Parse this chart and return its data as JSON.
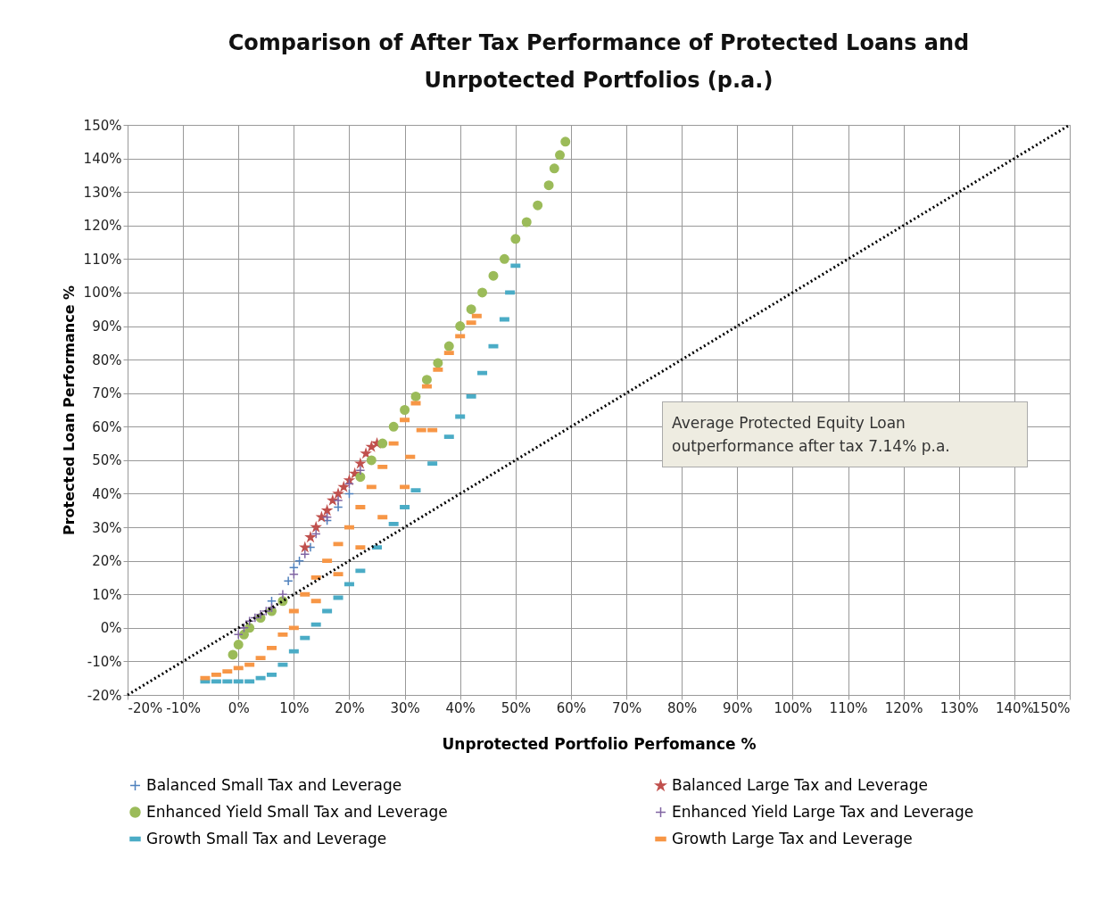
{
  "chart_data": {
    "type": "scatter",
    "title": "Comparison of After Tax  Performance of Protected Loans and\nUnrpotected Portfolios (p.a.)",
    "xlabel": "Unprotected Portfolio Perfomance %",
    "ylabel": "Protected Loan Performance %",
    "xlim": [
      -20,
      150
    ],
    "ylim": [
      -20,
      150
    ],
    "xticks": [
      {
        "value": -20,
        "label": "-20%"
      },
      {
        "value": -10,
        "label": "-10%"
      },
      {
        "value": 0,
        "label": "0%"
      },
      {
        "value": 10,
        "label": "10%"
      },
      {
        "value": 20,
        "label": "20%"
      },
      {
        "value": 30,
        "label": "30%"
      },
      {
        "value": 40,
        "label": "40%"
      },
      {
        "value": 50,
        "label": "50%"
      },
      {
        "value": 60,
        "label": "60%"
      },
      {
        "value": 70,
        "label": "70%"
      },
      {
        "value": 80,
        "label": "80%"
      },
      {
        "value": 90,
        "label": "90%"
      },
      {
        "value": 100,
        "label": "100%"
      },
      {
        "value": 110,
        "label": "110%"
      },
      {
        "value": 120,
        "label": "120%"
      },
      {
        "value": 130,
        "label": "130%"
      },
      {
        "value": 140,
        "label": "140%"
      },
      {
        "value": 150,
        "label": "150%"
      }
    ],
    "yticks": [
      {
        "value": -20,
        "label": "-20%"
      },
      {
        "value": -10,
        "label": "-10%"
      },
      {
        "value": 0,
        "label": "0%"
      },
      {
        "value": 10,
        "label": "10%"
      },
      {
        "value": 20,
        "label": "20%"
      },
      {
        "value": 30,
        "label": "30%"
      },
      {
        "value": 40,
        "label": "40%"
      },
      {
        "value": 50,
        "label": "50%"
      },
      {
        "value": 60,
        "label": "60%"
      },
      {
        "value": 70,
        "label": "70%"
      },
      {
        "value": 80,
        "label": "80%"
      },
      {
        "value": 90,
        "label": "90%"
      },
      {
        "value": 100,
        "label": "100%"
      },
      {
        "value": 110,
        "label": "110%"
      },
      {
        "value": 120,
        "label": "120%"
      },
      {
        "value": 130,
        "label": "130%"
      },
      {
        "value": 140,
        "label": "140%"
      },
      {
        "value": 150,
        "label": "150%"
      }
    ],
    "grid": true,
    "legend": "bottom",
    "annotations": [
      "Average Protected Equity Loan outperformance after tax 7.14% p.a."
    ],
    "series": [
      {
        "name": "Balanced Small Tax and Leverage",
        "type": "scatter",
        "marker": "cross",
        "color": "#4f81bd",
        "x": [
          6,
          9,
          10,
          11,
          13,
          16,
          18,
          20
        ],
        "values": [
          8,
          14,
          18,
          20,
          24,
          32,
          36,
          40
        ]
      },
      {
        "name": "Balanced Large Tax and Leverage",
        "type": "scatter",
        "marker": "star",
        "color": "#c0504d",
        "x": [
          12,
          13,
          14,
          15,
          16,
          17,
          18,
          19,
          20,
          21,
          22,
          23,
          24,
          25
        ],
        "values": [
          24,
          27,
          30,
          33,
          35,
          38,
          40,
          42,
          44,
          46,
          49,
          52,
          54,
          55
        ]
      },
      {
        "name": "Enhanced Yield Small Tax and Leverage",
        "type": "scatter",
        "marker": "circle",
        "color": "#9bbb59",
        "x": [
          -1,
          0,
          1,
          2,
          4,
          6,
          8,
          22,
          24,
          26,
          28,
          30,
          32,
          34,
          36,
          38,
          40,
          42,
          44,
          46,
          48,
          50,
          52,
          54,
          56,
          57,
          58,
          59
        ],
        "values": [
          -8,
          -5,
          -2,
          0,
          3,
          5,
          8,
          45,
          50,
          55,
          60,
          65,
          69,
          74,
          79,
          84,
          90,
          95,
          100,
          105,
          110,
          116,
          121,
          126,
          132,
          137,
          141,
          145
        ]
      },
      {
        "name": "Enhanced Yield Large Tax and Leverage",
        "type": "scatter",
        "marker": "cross",
        "color": "#8064a2",
        "x": [
          0,
          1,
          2,
          3,
          4,
          5,
          6,
          8,
          10,
          12,
          14,
          16,
          18,
          20,
          22
        ],
        "values": [
          -2,
          0,
          2,
          3,
          4,
          5,
          6,
          10,
          16,
          22,
          28,
          33,
          38,
          43,
          47
        ]
      },
      {
        "name": "Growth Small Tax and Leverage",
        "type": "scatter",
        "marker": "square",
        "color": "#4bacc6",
        "x": [
          -6,
          -4,
          -2,
          0,
          2,
          4,
          6,
          8,
          10,
          12,
          14,
          16,
          18,
          20,
          22,
          25,
          28,
          30,
          32,
          35,
          38,
          40,
          42,
          44,
          46,
          48,
          49,
          50
        ],
        "values": [
          -16,
          -16,
          -16,
          -16,
          -16,
          -15,
          -14,
          -11,
          -7,
          -3,
          1,
          5,
          9,
          13,
          17,
          24,
          31,
          36,
          41,
          49,
          57,
          63,
          69,
          76,
          84,
          92,
          100,
          108
        ]
      },
      {
        "name": "Growth Large Tax and Leverage",
        "type": "scatter",
        "marker": "square",
        "color": "#f79646",
        "x": [
          -6,
          -4,
          -2,
          0,
          2,
          4,
          6,
          8,
          10,
          12,
          14,
          16,
          18,
          20,
          22,
          24,
          26,
          28,
          30,
          32,
          34,
          36,
          38,
          40,
          42,
          43,
          10,
          14,
          18,
          22,
          26,
          30,
          31,
          33,
          35
        ],
        "values": [
          -15,
          -14,
          -13,
          -12,
          -11,
          -9,
          -6,
          -2,
          5,
          10,
          15,
          20,
          25,
          30,
          36,
          42,
          48,
          55,
          62,
          67,
          72,
          77,
          82,
          87,
          91,
          93,
          0,
          8,
          16,
          24,
          33,
          42,
          51,
          59,
          59
        ]
      },
      {
        "type": "line",
        "color": "#000000",
        "line_style": "dotted",
        "x": [
          -20,
          150
        ],
        "values": [
          -20,
          150
        ]
      }
    ]
  }
}
